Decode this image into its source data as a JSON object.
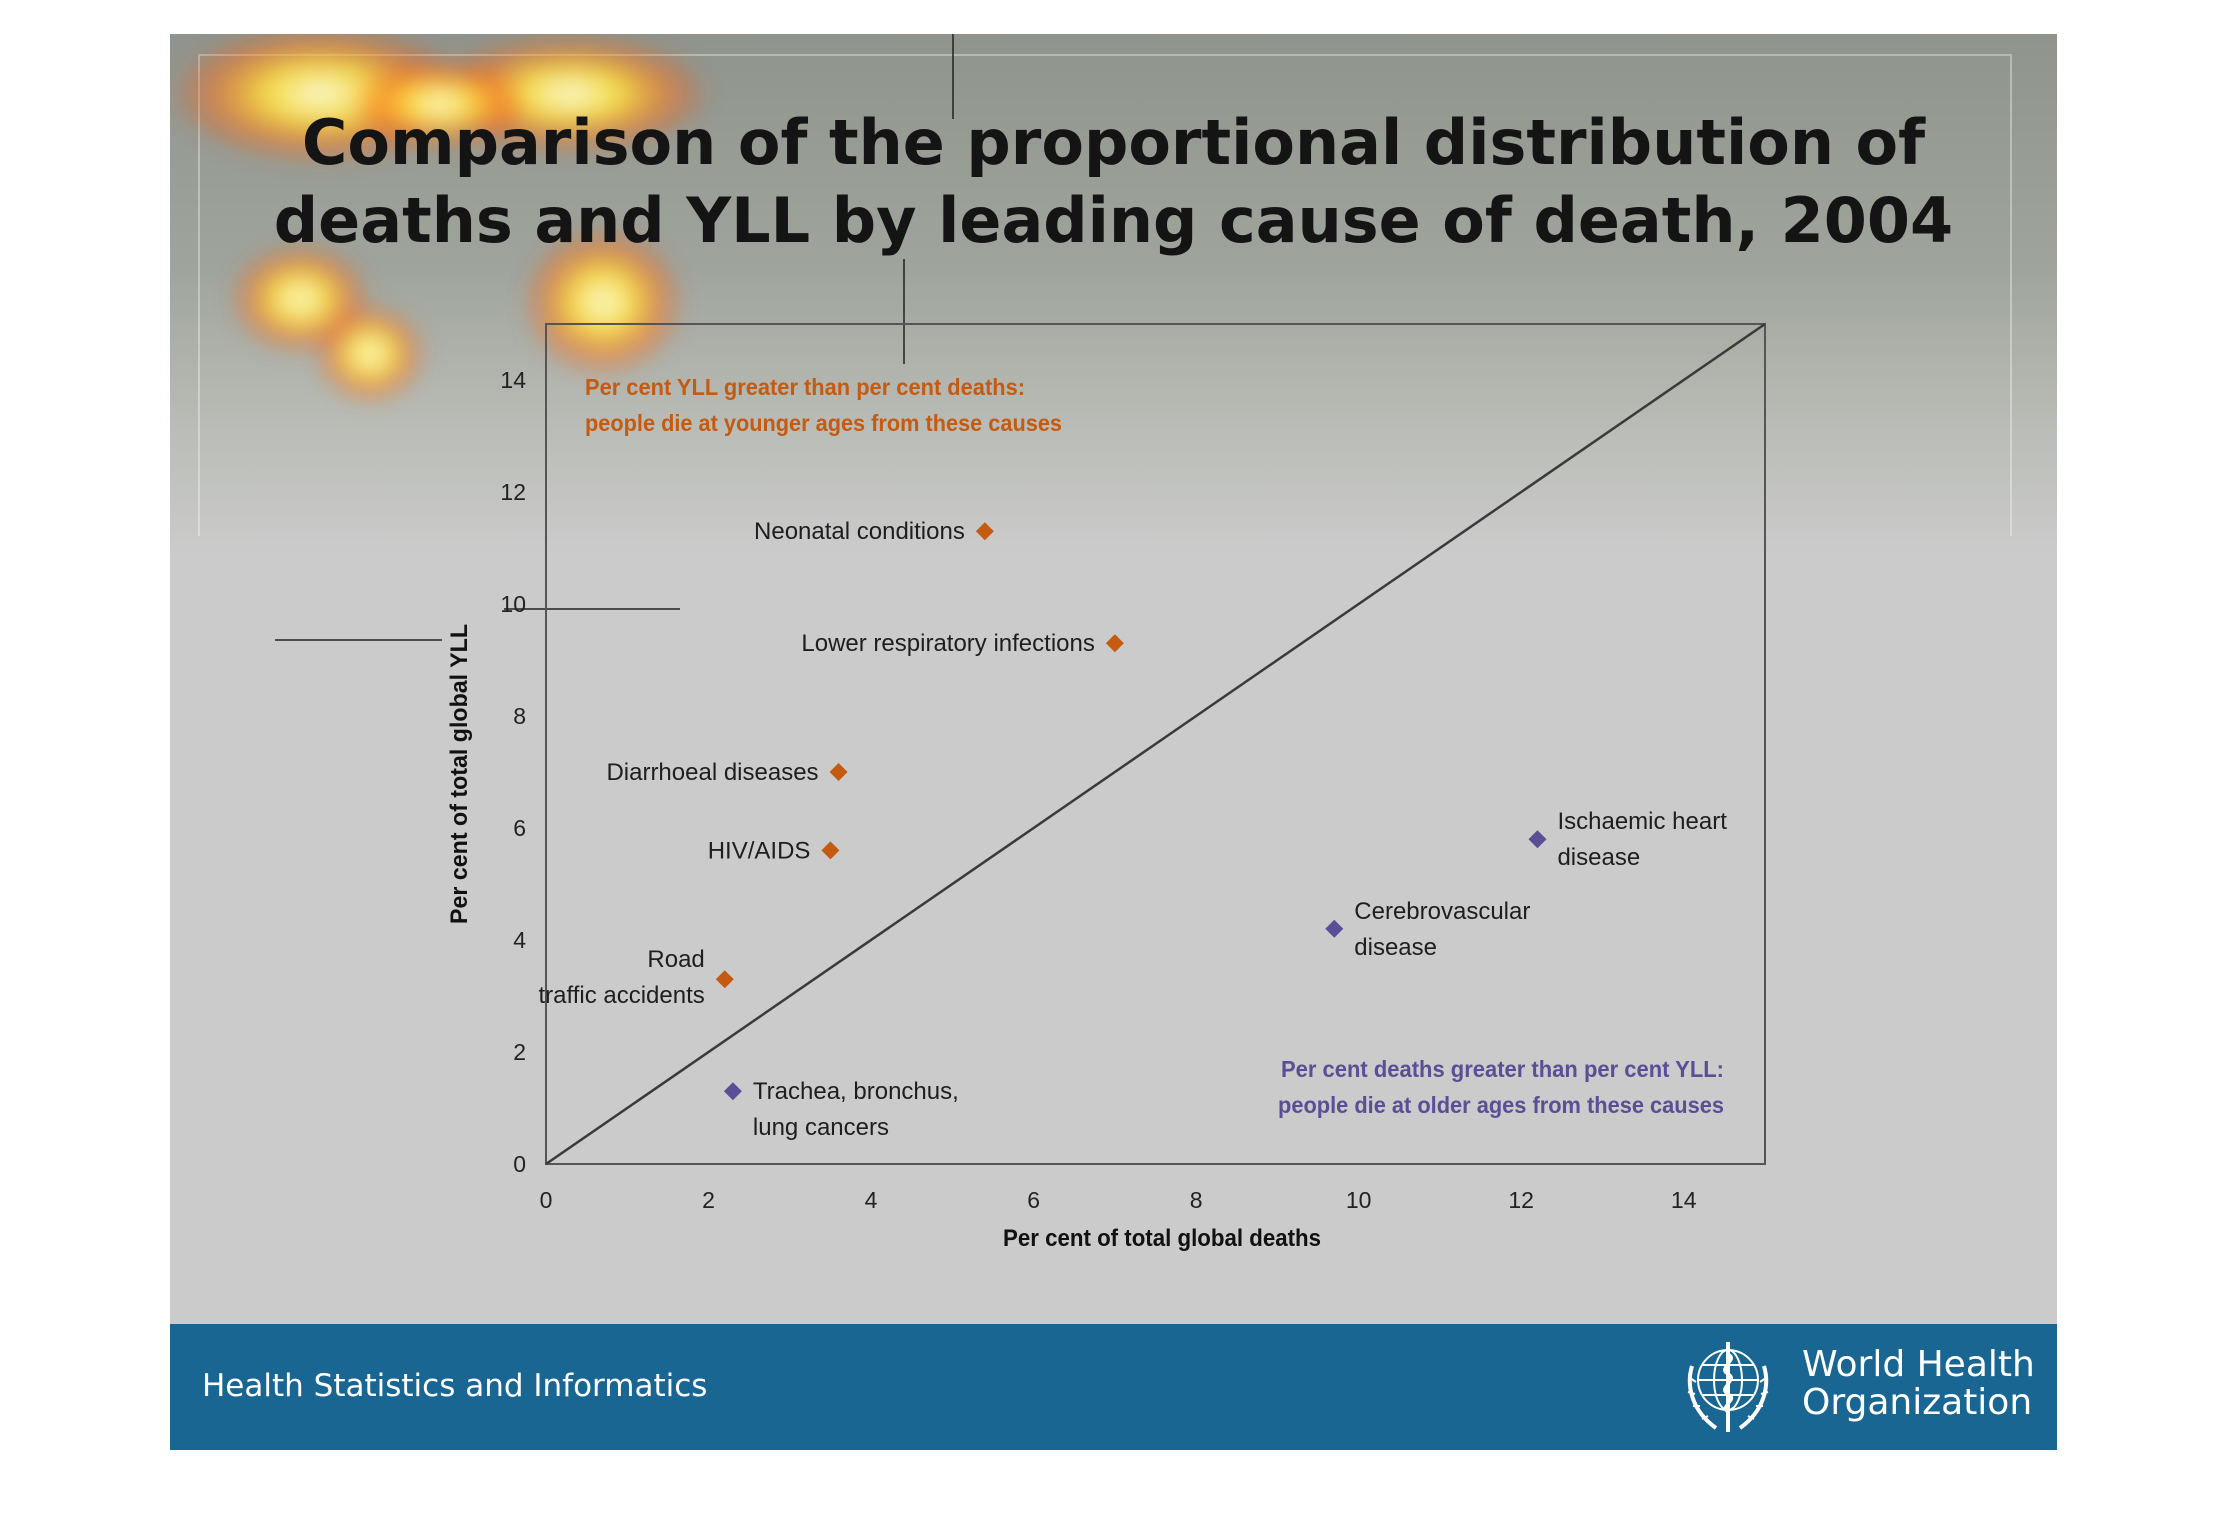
{
  "slide": {
    "title_line1": "Comparison of the proportional distribution of",
    "title_line2": "deaths and YLL by leading cause of death, 2004",
    "footer_text": "Health Statistics and Informatics",
    "logo_text_line1": "World Health",
    "logo_text_line2": "Organization"
  },
  "colors": {
    "younger": "#c55a11",
    "older": "#5a4f96",
    "footer": "#196693",
    "diagonal": "#3a3a3a"
  },
  "chart_data": {
    "type": "scatter",
    "xlabel": "Per cent of total global deaths",
    "ylabel": "Per cent of total global YLL",
    "xlim": [
      0,
      15
    ],
    "ylim": [
      0,
      15
    ],
    "xticks": [
      0,
      2,
      4,
      6,
      8,
      10,
      12,
      14
    ],
    "yticks": [
      0,
      2,
      4,
      6,
      8,
      10,
      12,
      14
    ],
    "diagonal": [
      [
        0,
        0
      ],
      [
        15,
        15
      ]
    ],
    "annotations": [
      {
        "text_lines": [
          "Per cent YLL greater than per cent deaths:",
          "people die at younger ages from these causes"
        ],
        "group": "younger"
      },
      {
        "text_lines": [
          "Per cent deaths greater than per cent YLL:",
          "people die at older ages from these causes"
        ],
        "group": "older"
      }
    ],
    "points": [
      {
        "label_lines": [
          "Neonatal conditions"
        ],
        "x": 5.4,
        "y": 11.3,
        "group": "younger"
      },
      {
        "label_lines": [
          "Lower respiratory infections"
        ],
        "x": 7.0,
        "y": 9.3,
        "group": "younger"
      },
      {
        "label_lines": [
          "Diarrhoeal diseases"
        ],
        "x": 3.6,
        "y": 7.0,
        "group": "younger"
      },
      {
        "label_lines": [
          "HIV/AIDS"
        ],
        "x": 3.5,
        "y": 5.6,
        "group": "younger"
      },
      {
        "label_lines": [
          "Road",
          "traffic accidents"
        ],
        "x": 2.2,
        "y": 3.3,
        "group": "younger"
      },
      {
        "label_lines": [
          "Trachea, bronchus,",
          "lung cancers"
        ],
        "x": 2.3,
        "y": 1.3,
        "group": "older"
      },
      {
        "label_lines": [
          "Cerebrovascular",
          "disease"
        ],
        "x": 9.7,
        "y": 4.2,
        "group": "older"
      },
      {
        "label_lines": [
          "Ischaemic heart",
          "disease"
        ],
        "x": 12.2,
        "y": 5.8,
        "group": "older"
      }
    ]
  }
}
